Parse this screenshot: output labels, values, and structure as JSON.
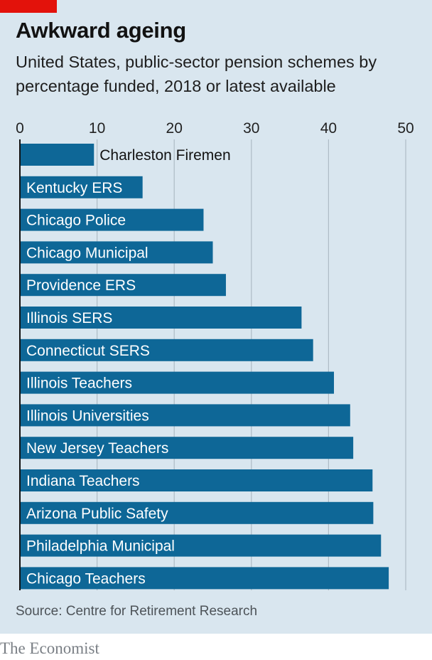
{
  "header": {
    "title": "Awkward ageing",
    "subtitle": "United States, public-sector pension schemes by percentage funded, 2018 or latest available"
  },
  "footer": {
    "source": "Source: Centre for Retirement Research",
    "brand": "The Economist"
  },
  "colors": {
    "bar": "#0e6797",
    "background": "#d9e6ef",
    "accent": "#e3120b",
    "gridline": "#aebbc6",
    "axis": "#121212"
  },
  "chart_data": {
    "type": "bar",
    "orientation": "horizontal",
    "title": "Awkward ageing",
    "subtitle": "United States, public-sector pension schemes by percentage funded, 2018 or latest available",
    "xlabel": "",
    "ylabel": "",
    "xlim": [
      0,
      50
    ],
    "xticks": [
      0,
      10,
      20,
      30,
      40,
      50
    ],
    "tick_position": "top",
    "grid": true,
    "categories": [
      "Charleston Firemen",
      "Kentucky ERS",
      "Chicago Police",
      "Chicago Municipal",
      "Providence ERS",
      "Illinois SERS",
      "Connecticut SERS",
      "Illinois Teachers",
      "Illinois Universities",
      "New Jersey Teachers",
      "Indiana Teachers",
      "Arizona Public Safety",
      "Philadelphia Municipal",
      "Chicago Teachers"
    ],
    "values": [
      9.6,
      15.9,
      23.8,
      25.0,
      26.7,
      36.5,
      38.0,
      40.7,
      42.8,
      43.2,
      45.7,
      45.8,
      46.8,
      47.8
    ],
    "source": "Source: Centre for Retirement Research"
  }
}
